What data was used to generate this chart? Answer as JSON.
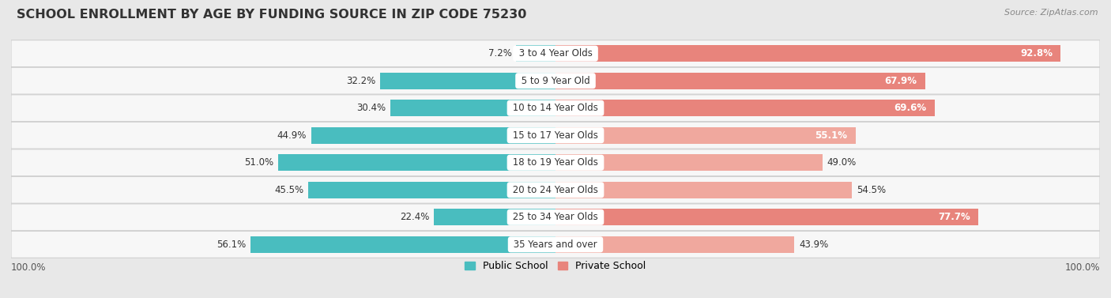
{
  "title": "SCHOOL ENROLLMENT BY AGE BY FUNDING SOURCE IN ZIP CODE 75230",
  "source": "Source: ZipAtlas.com",
  "categories": [
    "3 to 4 Year Olds",
    "5 to 9 Year Old",
    "10 to 14 Year Olds",
    "15 to 17 Year Olds",
    "18 to 19 Year Olds",
    "20 to 24 Year Olds",
    "25 to 34 Year Olds",
    "35 Years and over"
  ],
  "public_values": [
    7.2,
    32.2,
    30.4,
    44.9,
    51.0,
    45.5,
    22.4,
    56.1
  ],
  "private_values": [
    92.8,
    67.9,
    69.6,
    55.1,
    49.0,
    54.5,
    77.7,
    43.9
  ],
  "public_color": "#49BDBF",
  "private_color": "#E8847C",
  "private_color_light": "#F0A89E",
  "background_color": "#e8e8e8",
  "row_bg_color": "#f7f7f7",
  "row_border_color": "#d0d0d0",
  "axis_label_left": "100.0%",
  "axis_label_right": "100.0%",
  "legend_public": "Public School",
  "legend_private": "Private School",
  "title_fontsize": 11.5,
  "bar_fontsize": 8.5,
  "label_fontsize": 8.5
}
